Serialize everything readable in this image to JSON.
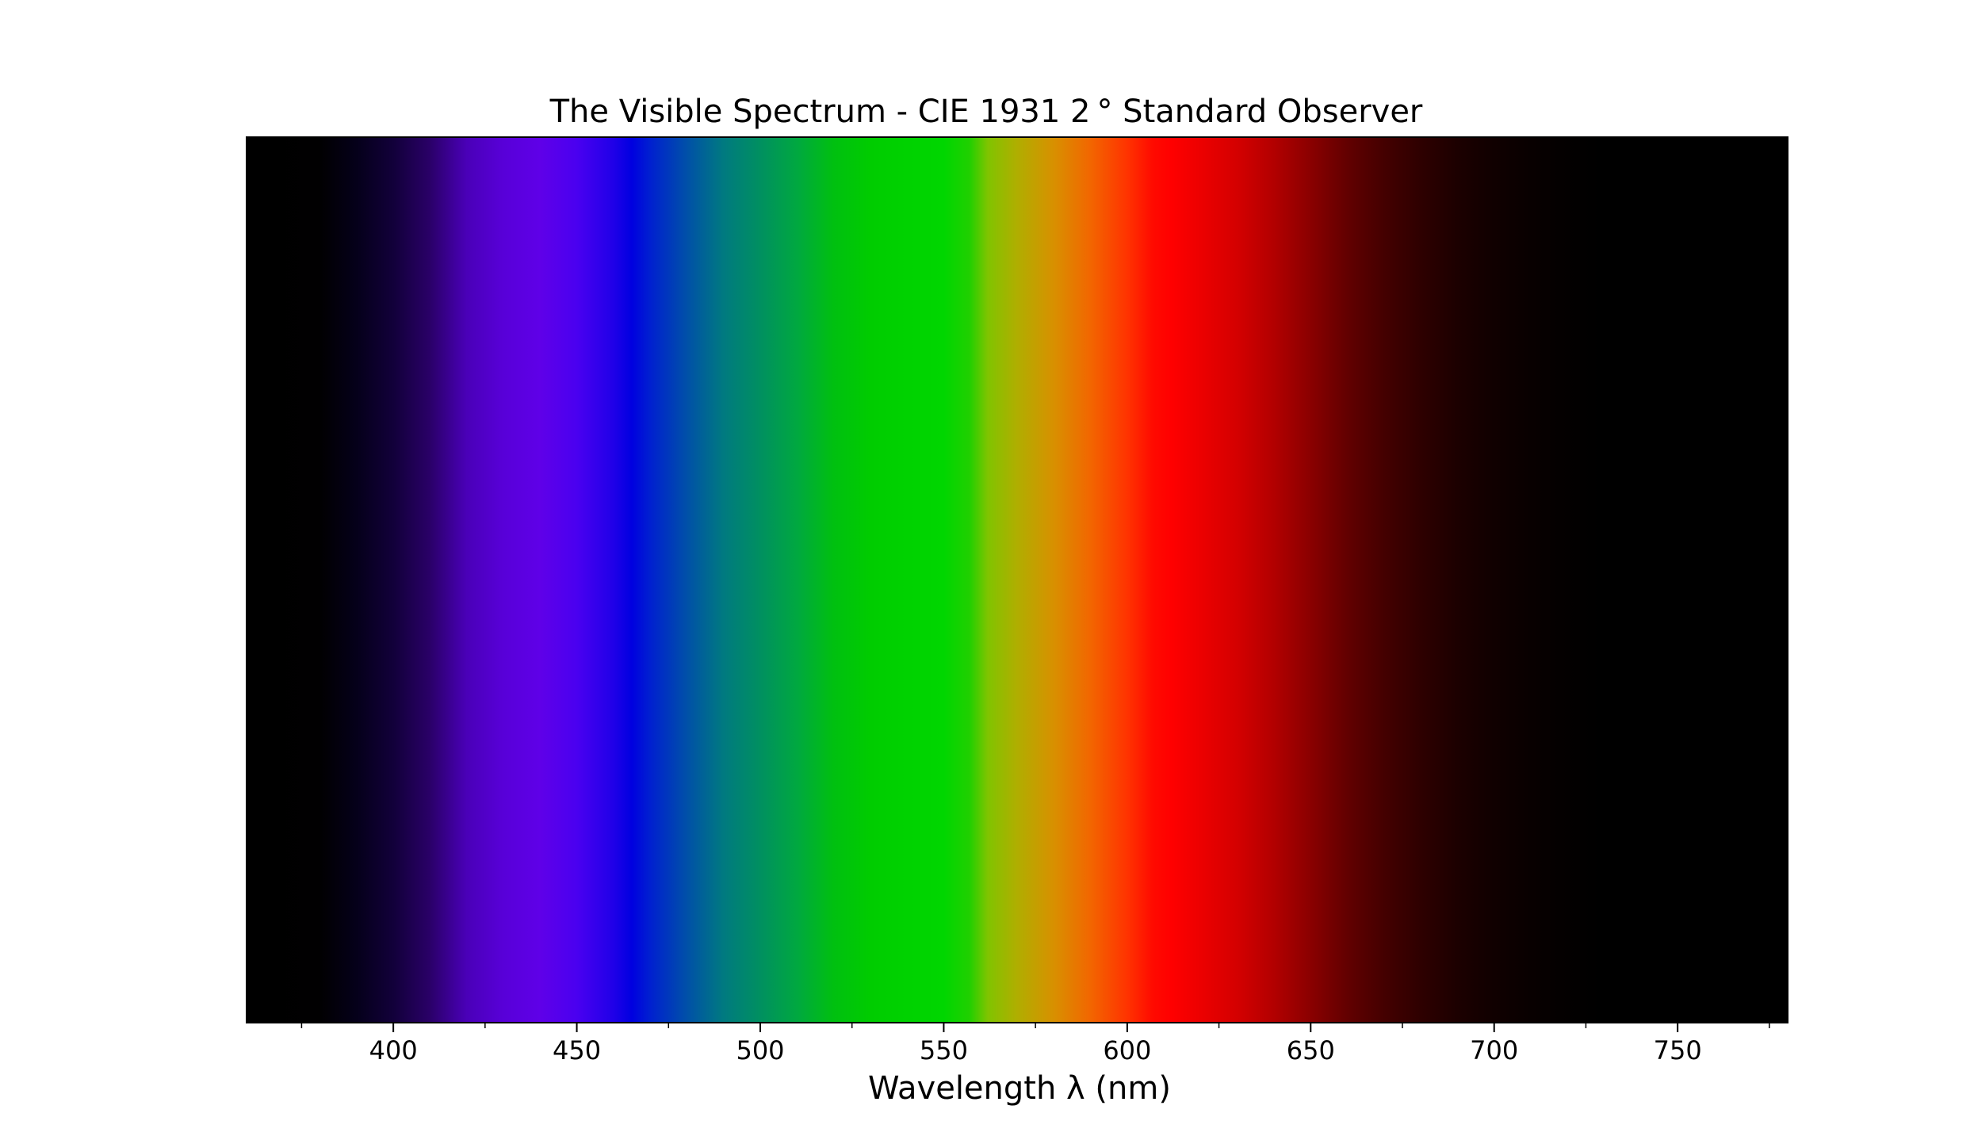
{
  "chart_data": {
    "type": "heatmap",
    "title": "The Visible Spectrum - CIE 1931 2 ° Standard Observer",
    "xlabel": "Wavelength λ (nm)",
    "ylabel": "",
    "xlim": [
      360,
      780
    ],
    "major_ticks": [
      400,
      450,
      500,
      550,
      600,
      650,
      700,
      750
    ],
    "tick_labels": [
      "400",
      "450",
      "500",
      "550",
      "600",
      "650",
      "700",
      "750"
    ],
    "minor_ticks": [
      375,
      425,
      475,
      525,
      575,
      625,
      675,
      725,
      775
    ],
    "grid": false,
    "legend": "none",
    "spectrum": [
      {
        "wavelength": 360,
        "color": "#000000"
      },
      {
        "wavelength": 380,
        "color": "#010001"
      },
      {
        "wavelength": 390,
        "color": "#05001a"
      },
      {
        "wavelength": 400,
        "color": "#12003a"
      },
      {
        "wavelength": 410,
        "color": "#2a0068"
      },
      {
        "wavelength": 420,
        "color": "#4a00b8"
      },
      {
        "wavelength": 430,
        "color": "#5800d8"
      },
      {
        "wavelength": 440,
        "color": "#5f00e8"
      },
      {
        "wavelength": 450,
        "color": "#4a00f0"
      },
      {
        "wavelength": 460,
        "color": "#2000e8"
      },
      {
        "wavelength": 465,
        "color": "#0000e0"
      },
      {
        "wavelength": 470,
        "color": "#0020d0"
      },
      {
        "wavelength": 480,
        "color": "#0050a8"
      },
      {
        "wavelength": 490,
        "color": "#007a80"
      },
      {
        "wavelength": 500,
        "color": "#009060"
      },
      {
        "wavelength": 510,
        "color": "#00a840"
      },
      {
        "wavelength": 520,
        "color": "#00c010"
      },
      {
        "wavelength": 530,
        "color": "#00cc00"
      },
      {
        "wavelength": 540,
        "color": "#00d200"
      },
      {
        "wavelength": 550,
        "color": "#00d600"
      },
      {
        "wavelength": 557,
        "color": "#20d000"
      },
      {
        "wavelength": 562,
        "color": "#80c400"
      },
      {
        "wavelength": 570,
        "color": "#b0ae00"
      },
      {
        "wavelength": 580,
        "color": "#d89000"
      },
      {
        "wavelength": 590,
        "color": "#f26600"
      },
      {
        "wavelength": 600,
        "color": "#ff3300"
      },
      {
        "wavelength": 607,
        "color": "#ff0a00"
      },
      {
        "wavelength": 612,
        "color": "#ff0000"
      },
      {
        "wavelength": 620,
        "color": "#ec0000"
      },
      {
        "wavelength": 630,
        "color": "#d40000"
      },
      {
        "wavelength": 640,
        "color": "#b20000"
      },
      {
        "wavelength": 650,
        "color": "#8a0000"
      },
      {
        "wavelength": 660,
        "color": "#620000"
      },
      {
        "wavelength": 670,
        "color": "#440000"
      },
      {
        "wavelength": 680,
        "color": "#2e0000"
      },
      {
        "wavelength": 690,
        "color": "#1c0000"
      },
      {
        "wavelength": 700,
        "color": "#100000"
      },
      {
        "wavelength": 710,
        "color": "#080000"
      },
      {
        "wavelength": 720,
        "color": "#030000"
      },
      {
        "wavelength": 730,
        "color": "#000000"
      },
      {
        "wavelength": 780,
        "color": "#000000"
      }
    ]
  }
}
